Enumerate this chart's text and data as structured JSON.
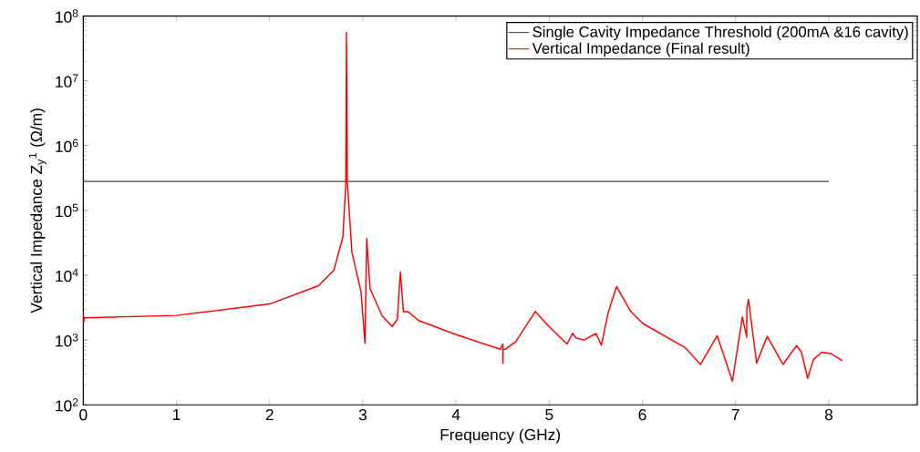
{
  "chart_data": {
    "type": "line",
    "xlabel": "Frequency (GHz)",
    "ylabel": "Vertical Impedance Z$_{y}$$^{1}$ (Ω/m)",
    "log": "y",
    "legend": "top right",
    "xlim": [
      0,
      8.95
    ],
    "xticks": [
      0,
      1,
      2,
      3,
      4,
      5,
      6,
      7,
      8
    ],
    "ylim": [
      100,
      100000000
    ],
    "yticks": [
      {
        "value": 100,
        "label": "10$^{2}$"
      },
      {
        "value": 1000,
        "label": "10$^{3}$"
      },
      {
        "value": 10000,
        "label": "10$^{4}$"
      },
      {
        "value": 100000,
        "label": "10$^{5}$"
      },
      {
        "value": 1000000,
        "label": "10$^{6}$"
      },
      {
        "value": 10000000,
        "label": "10$^{7}$"
      },
      {
        "value": 100000000,
        "label": "10$^{8}$"
      }
    ],
    "series": [
      {
        "name": "Single Cavity Impedance Threshold (200mA &16 cavity)",
        "color": "#404040",
        "x": [
          0,
          8
        ],
        "values": [
          280000,
          280000
        ]
      },
      {
        "name": "Vertical Impedance (Final result)",
        "color": "#ff0000",
        "x": [
          0,
          0.005,
          0.01,
          1.0,
          2.0,
          2.525,
          2.688,
          2.786,
          2.818,
          2.824,
          2.834,
          2.883,
          2.98,
          3.023,
          3.042,
          3.078,
          3.208,
          3.315,
          3.37,
          3.403,
          3.436,
          3.484,
          3.6,
          3.99,
          4.476,
          4.503,
          4.504,
          4.505,
          4.526,
          4.64,
          4.851,
          4.997,
          5.192,
          5.25,
          5.29,
          5.372,
          5.502,
          5.56,
          5.632,
          5.723,
          5.875,
          6.006,
          6.461,
          6.624,
          6.803,
          6.966,
          7.073,
          7.119,
          7.122,
          7.138,
          7.226,
          7.34,
          7.509,
          7.655,
          7.707,
          7.773,
          7.837,
          7.925,
          8.023,
          8.146
        ],
        "values": [
          2700,
          1900,
          2200,
          2400,
          3600,
          6900,
          11900,
          39000,
          270000,
          56000000,
          270000,
          22600,
          5600,
          890,
          36800,
          6200,
          2350,
          1620,
          2100,
          11200,
          2750,
          2750,
          2000,
          1230,
          720,
          870,
          440,
          720,
          720,
          940,
          2760,
          1620,
          870,
          1270,
          1070,
          1000,
          1260,
          830,
          2630,
          6700,
          2760,
          1800,
          760,
          420,
          1170,
          232,
          2270,
          1110,
          3100,
          4260,
          440,
          1140,
          420,
          820,
          650,
          258,
          503,
          650,
          620,
          480
        ]
      }
    ]
  }
}
